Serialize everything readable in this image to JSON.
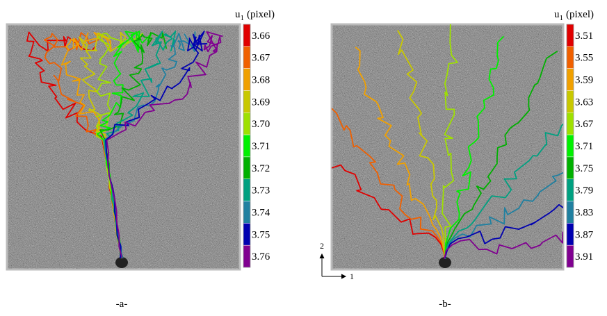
{
  "panels": [
    {
      "caption": "-a-",
      "colorbar": {
        "symbol": "u",
        "subscript": "1",
        "unit": "(pixel)",
        "levels": [
          {
            "label": "3.66",
            "color": "#e00000"
          },
          {
            "label": "3.67",
            "color": "#f06000"
          },
          {
            "label": "3.68",
            "color": "#f0a000"
          },
          {
            "label": "3.69",
            "color": "#c8c800"
          },
          {
            "label": "3.70",
            "color": "#9ee000"
          },
          {
            "label": "3.71",
            "color": "#00f000"
          },
          {
            "label": "3.72",
            "color": "#00b000"
          },
          {
            "label": "3.73",
            "color": "#00a080"
          },
          {
            "label": "3.74",
            "color": "#2080a0"
          },
          {
            "label": "3.75",
            "color": "#0000b0"
          },
          {
            "label": "3.76",
            "color": "#800090"
          }
        ]
      }
    },
    {
      "caption": "-b-",
      "colorbar": {
        "symbol": "u",
        "subscript": "1",
        "unit": "(pixel)",
        "levels": [
          {
            "label": "3.51",
            "color": "#e00000"
          },
          {
            "label": "3.55",
            "color": "#f06000"
          },
          {
            "label": "3.59",
            "color": "#f0a000"
          },
          {
            "label": "3.63",
            "color": "#c8c800"
          },
          {
            "label": "3.67",
            "color": "#9ee000"
          },
          {
            "label": "3.71",
            "color": "#00f000"
          },
          {
            "label": "3.75",
            "color": "#00b000"
          },
          {
            "label": "3.79",
            "color": "#00a080"
          },
          {
            "label": "3.83",
            "color": "#2080a0"
          },
          {
            "label": "3.87",
            "color": "#0000b0"
          },
          {
            "label": "3.91",
            "color": "#800090"
          }
        ]
      }
    }
  ],
  "axes_indicator": {
    "vertical": "2",
    "horizontal": "1"
  }
}
